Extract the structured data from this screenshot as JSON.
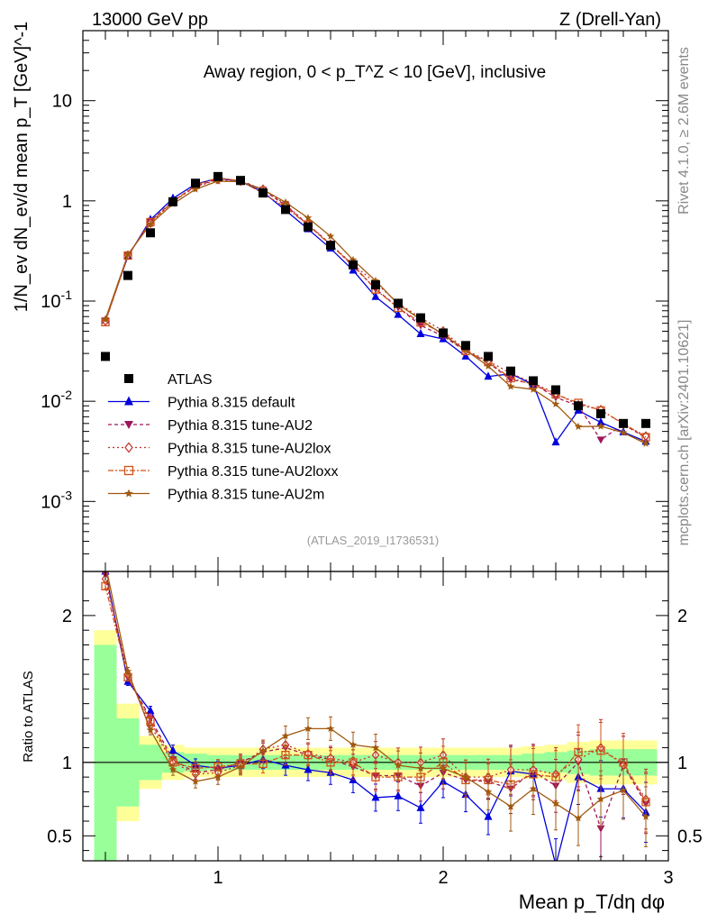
{
  "header": {
    "left": "13000 GeV pp",
    "right": "Z (Drell-Yan)"
  },
  "side_labels": {
    "rivet": "Rivet 4.1.0, ≥ 2.6M events",
    "mcplots": "mcplots.cern.ch [arXiv:2401.10621]"
  },
  "chart_data": {
    "type": "line",
    "title": "Away region, 0 < p_T^Z < 10 [GeV], inclusive",
    "analysis_id": "(ATLAS_2019_I1736531)",
    "xlabel": "Mean p_T/dη dφ",
    "ylabel": "1/N_ev dN_ev/d mean p_T [GeV]^-1",
    "ratio_ylabel": "Ratio to ATLAS",
    "xlim": [
      0.4,
      3.0
    ],
    "ylim": [
      0.0002,
      50
    ],
    "yscale": "log",
    "ratio_ylim": [
      0.33,
      2.3
    ],
    "x_ticks": [
      "1",
      "2",
      "3"
    ],
    "y_ticks": [
      "10^-3",
      "10^-2",
      "10^-1",
      "1",
      "10"
    ],
    "ratio_ticks": [
      "0.5",
      "1",
      "2"
    ],
    "x": [
      0.5,
      0.6,
      0.7,
      0.8,
      0.9,
      1.0,
      1.1,
      1.2,
      1.3,
      1.4,
      1.5,
      1.6,
      1.7,
      1.8,
      1.9,
      2.0,
      2.1,
      2.2,
      2.3,
      2.4,
      2.5,
      2.6,
      2.7,
      2.8,
      2.9
    ],
    "reference": {
      "name": "ATLAS",
      "values": [
        0.028,
        0.18,
        0.48,
        0.98,
        1.5,
        1.75,
        1.6,
        1.2,
        0.82,
        0.55,
        0.36,
        0.23,
        0.145,
        0.095,
        0.068,
        0.048,
        0.036,
        0.028,
        0.02,
        0.016,
        0.013,
        0.009,
        0.0075,
        0.006,
        0.006
      ],
      "band_inner": [
        0.8,
        0.3,
        0.12,
        0.07,
        0.06,
        0.05,
        0.05,
        0.05,
        0.05,
        0.05,
        0.05,
        0.05,
        0.05,
        0.05,
        0.05,
        0.05,
        0.05,
        0.05,
        0.05,
        0.06,
        0.07,
        0.08,
        0.09,
        0.09,
        0.09
      ],
      "band_outer": [
        0.9,
        0.4,
        0.18,
        0.12,
        0.1,
        0.1,
        0.1,
        0.1,
        0.1,
        0.1,
        0.1,
        0.1,
        0.1,
        0.1,
        0.1,
        0.1,
        0.1,
        0.1,
        0.1,
        0.11,
        0.12,
        0.14,
        0.15,
        0.15,
        0.15
      ]
    },
    "series": [
      {
        "name": "Pythia 8.315 default",
        "color": "#0000dd",
        "marker": "triangle-up",
        "dash": "",
        "ratio": [
          2.3,
          1.55,
          1.35,
          1.08,
          0.98,
          0.96,
          0.98,
          1.02,
          0.98,
          0.95,
          0.93,
          0.88,
          0.76,
          0.77,
          0.69,
          0.87,
          0.78,
          0.63,
          0.94,
          0.92,
          0.3,
          0.9,
          0.82,
          0.82,
          0.66
        ]
      },
      {
        "name": "Pythia 8.315 tune-AU2",
        "color": "#a0155a",
        "marker": "triangle-down",
        "dash": "4,3",
        "ratio": [
          2.28,
          1.58,
          1.3,
          1.02,
          0.93,
          0.95,
          1.0,
          1.07,
          1.1,
          1.05,
          1.02,
          0.97,
          0.91,
          0.91,
          0.84,
          0.93,
          0.88,
          0.87,
          0.82,
          0.94,
          0.84,
          1.0,
          0.55,
          0.98,
          0.72
        ]
      },
      {
        "name": "Pythia 8.315 tune-AU2lox",
        "color": "#c0302a",
        "marker": "diamond-open",
        "dash": "2,3",
        "ratio": [
          2.25,
          1.6,
          1.25,
          1.0,
          0.92,
          0.93,
          0.98,
          1.09,
          1.12,
          1.06,
          1.03,
          1.0,
          1.05,
          1.0,
          1.0,
          1.05,
          0.9,
          0.9,
          0.95,
          0.95,
          0.92,
          1.02,
          1.1,
          0.98,
          0.75
        ]
      },
      {
        "name": "Pythia 8.315 tune-AU2loxx",
        "color": "#d05018",
        "marker": "square-open",
        "dash": "6,2,2,2",
        "ratio": [
          2.2,
          1.58,
          1.28,
          1.0,
          0.96,
          0.97,
          0.99,
          0.99,
          1.05,
          1.05,
          1.0,
          1.0,
          0.9,
          0.9,
          0.9,
          1.0,
          0.88,
          0.88,
          0.85,
          0.92,
          0.9,
          1.07,
          1.08,
          1.0,
          0.73
        ]
      },
      {
        "name": "Pythia 8.315 tune-AU2m",
        "color": "#a05a10",
        "marker": "star",
        "dash": "",
        "ratio": [
          2.35,
          1.62,
          1.22,
          0.95,
          0.87,
          0.9,
          0.97,
          1.08,
          1.18,
          1.23,
          1.23,
          1.12,
          1.1,
          0.98,
          0.96,
          0.96,
          0.9,
          0.8,
          0.7,
          0.82,
          0.72,
          0.62,
          0.75,
          0.81,
          0.63
        ]
      }
    ]
  }
}
